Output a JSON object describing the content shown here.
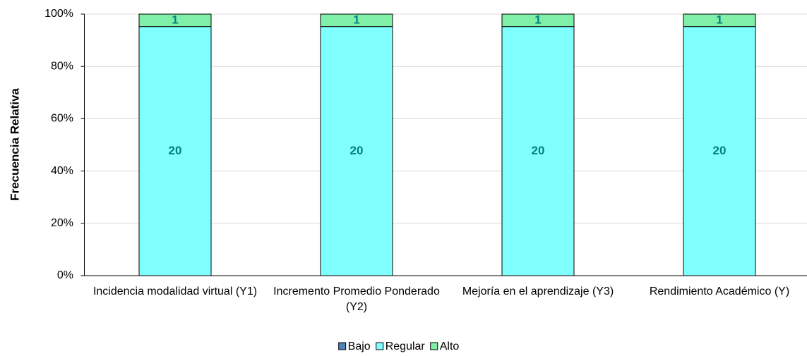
{
  "chart_data": {
    "type": "bar",
    "stack": "percent",
    "ylabel": "Frecuencia Relativa",
    "categories": [
      "Incidencia modalidad virtual (Y1)",
      "Incremento Promedio Ponderado (Y2)",
      "Mejoría en el aprendizaje (Y3)",
      "Rendimiento Académico (Y)"
    ],
    "series": [
      {
        "name": "Bajo",
        "color": "#4f81bd",
        "values": [
          0,
          0,
          0,
          0
        ]
      },
      {
        "name": "Regular",
        "color": "#80ffff",
        "values": [
          20,
          20,
          20,
          20
        ]
      },
      {
        "name": "Alto",
        "color": "#80f0a8",
        "values": [
          1,
          1,
          1,
          1
        ]
      }
    ],
    "ylim": [
      0,
      100
    ],
    "yticks": [
      {
        "value": 0,
        "label": "0%"
      },
      {
        "value": 20,
        "label": "20%"
      },
      {
        "value": 40,
        "label": "40%"
      },
      {
        "value": 60,
        "label": "60%"
      },
      {
        "value": 80,
        "label": "80%"
      },
      {
        "value": 100,
        "label": "100%"
      }
    ],
    "grid": true,
    "legend": "bottom"
  }
}
